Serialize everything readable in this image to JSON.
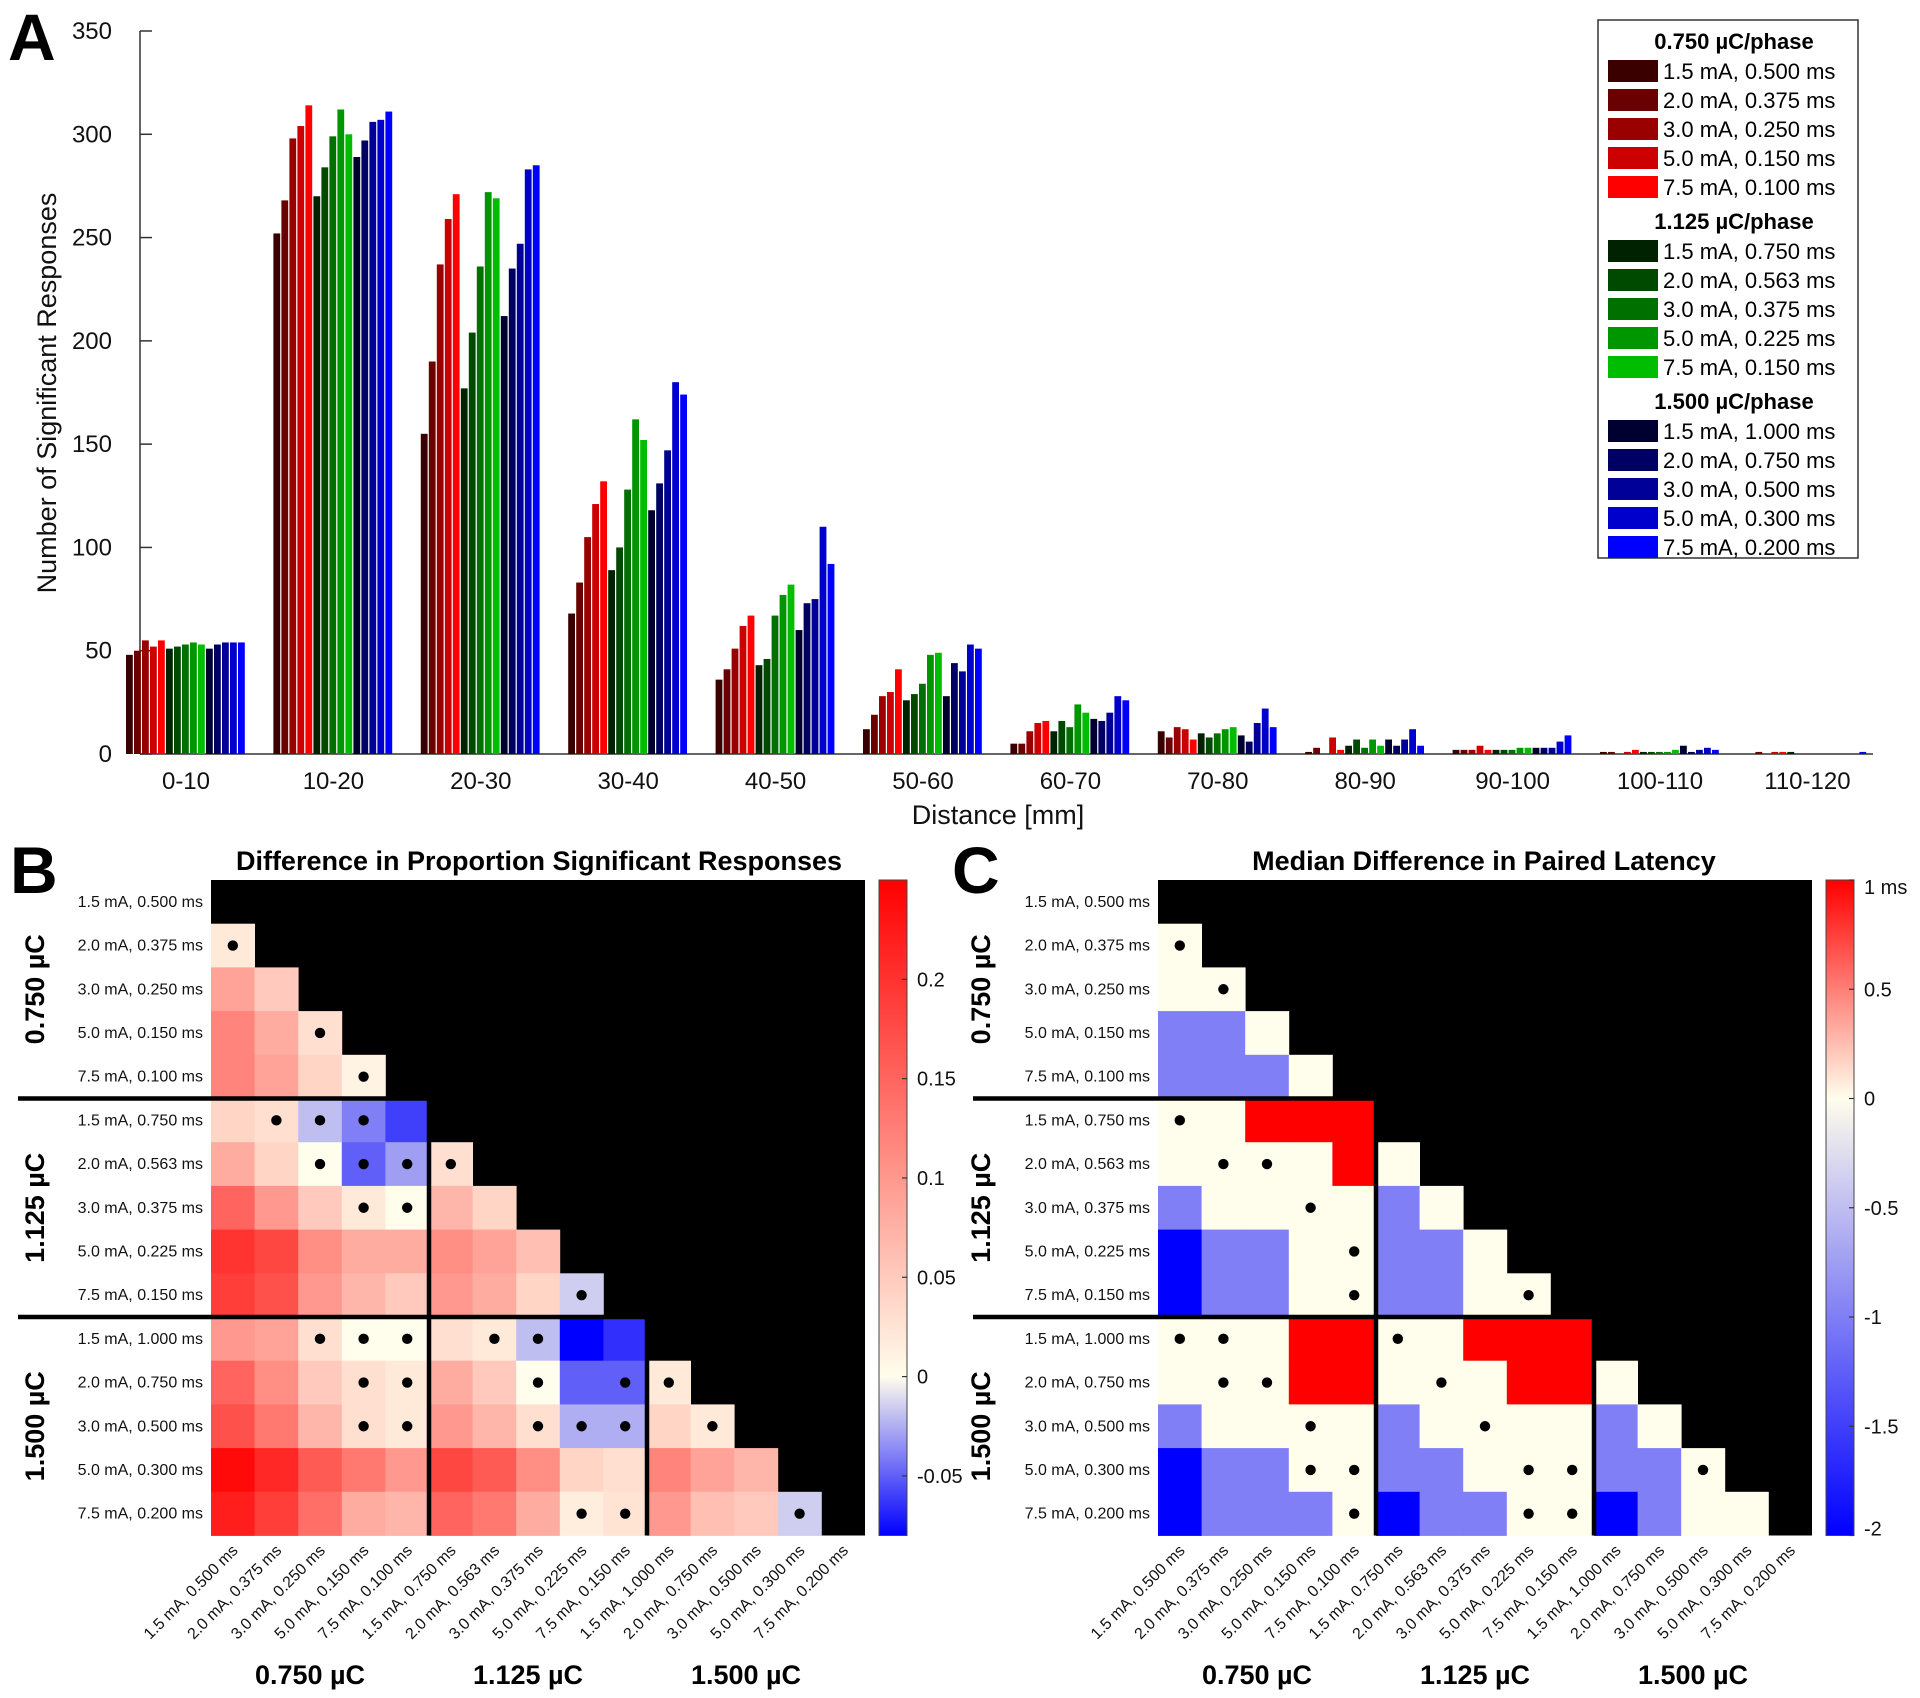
{
  "panel_labels": {
    "a": "A",
    "b": "B",
    "c": "C"
  },
  "chart_data": [
    {
      "type": "bar",
      "title": "",
      "xlabel": "Distance [mm]",
      "ylabel": "Number of Significant Responses",
      "ylim": [
        0,
        350
      ],
      "yticks": [
        "0",
        "50",
        "100",
        "150",
        "200",
        "250",
        "300",
        "350"
      ],
      "categories": [
        "0-10",
        "10-20",
        "20-30",
        "30-40",
        "40-50",
        "50-60",
        "60-70",
        "70-80",
        "80-90",
        "90-100",
        "100-110",
        "110-120"
      ],
      "legend": {
        "placement": "top-right",
        "groups": [
          {
            "title": "0.750 µC/phase",
            "series_index": [
              0,
              1,
              2,
              3,
              4
            ]
          },
          {
            "title": "1.125 µC/phase",
            "series_index": [
              5,
              6,
              7,
              8,
              9
            ]
          },
          {
            "title": "1.500 µC/phase",
            "series_index": [
              10,
              11,
              12,
              13,
              14
            ]
          }
        ]
      },
      "series": [
        {
          "name": "1.5 mA, 0.500 ms",
          "color": "#3a0000",
          "values": [
            48,
            252,
            155,
            68,
            36,
            12,
            5,
            11,
            1,
            2,
            1,
            0
          ]
        },
        {
          "name": "2.0 mA, 0.375 ms",
          "color": "#6b0000",
          "values": [
            50,
            268,
            190,
            83,
            41,
            19,
            5,
            8,
            3,
            2,
            1,
            1
          ]
        },
        {
          "name": "3.0 mA, 0.250 ms",
          "color": "#9b0000",
          "values": [
            55,
            298,
            237,
            105,
            51,
            28,
            11,
            13,
            0,
            2,
            0,
            0
          ]
        },
        {
          "name": "5.0 mA, 0.150 ms",
          "color": "#cc0000",
          "values": [
            52,
            304,
            259,
            121,
            62,
            30,
            15,
            12,
            8,
            4,
            1,
            1
          ]
        },
        {
          "name": "7.5 mA, 0.100 ms",
          "color": "#ff0000",
          "values": [
            55,
            314,
            271,
            132,
            67,
            41,
            16,
            7,
            2,
            2,
            2,
            1
          ]
        },
        {
          "name": "1.5 mA, 0.750 ms",
          "color": "#002200",
          "values": [
            51,
            270,
            177,
            89,
            43,
            26,
            11,
            10,
            4,
            2,
            1,
            1
          ]
        },
        {
          "name": "2.0 mA, 0.563 ms",
          "color": "#004a00",
          "values": [
            52,
            284,
            204,
            100,
            46,
            29,
            16,
            8,
            7,
            2,
            1,
            0
          ]
        },
        {
          "name": "3.0 mA, 0.375 ms",
          "color": "#007000",
          "values": [
            53,
            299,
            236,
            128,
            67,
            34,
            13,
            10,
            3,
            2,
            1,
            0
          ]
        },
        {
          "name": "5.0 mA, 0.225 ms",
          "color": "#009600",
          "values": [
            54,
            312,
            272,
            162,
            77,
            48,
            24,
            12,
            7,
            3,
            1,
            0
          ]
        },
        {
          "name": "7.5 mA, 0.150 ms",
          "color": "#00bd00",
          "values": [
            53,
            300,
            269,
            152,
            82,
            49,
            20,
            13,
            4,
            3,
            2,
            0
          ]
        },
        {
          "name": "1.5 mA, 1.000 ms",
          "color": "#000030",
          "values": [
            51,
            289,
            212,
            118,
            60,
            28,
            17,
            9,
            7,
            3,
            4,
            0
          ]
        },
        {
          "name": "2.0 mA, 0.750 ms",
          "color": "#000064",
          "values": [
            53,
            297,
            235,
            131,
            73,
            44,
            16,
            6,
            4,
            3,
            1,
            0
          ]
        },
        {
          "name": "3.0 mA, 0.500 ms",
          "color": "#000098",
          "values": [
            54,
            306,
            247,
            147,
            75,
            40,
            20,
            15,
            7,
            3,
            2,
            0
          ]
        },
        {
          "name": "5.0 mA, 0.300 ms",
          "color": "#0000cc",
          "values": [
            54,
            307,
            283,
            180,
            110,
            53,
            28,
            22,
            12,
            6,
            3,
            0
          ]
        },
        {
          "name": "7.5 mA, 0.200 ms",
          "color": "#0000ff",
          "values": [
            54,
            311,
            285,
            174,
            92,
            51,
            26,
            13,
            4,
            9,
            2,
            1
          ]
        }
      ]
    },
    {
      "type": "heatmap",
      "title": "Difference in Proportion Significant Responses",
      "labels": [
        "1.5 mA, 0.500 ms",
        "2.0 mA, 0.375 ms",
        "3.0 mA, 0.250 ms",
        "5.0 mA, 0.150 ms",
        "7.5 mA, 0.100 ms",
        "1.5 mA, 0.750 ms",
        "2.0 mA, 0.563 ms",
        "3.0 mA, 0.375 ms",
        "5.0 mA, 0.225 ms",
        "7.5 mA, 0.150 ms",
        "1.5 mA, 1.000 ms",
        "2.0 mA, 0.750 ms",
        "3.0 mA, 0.500 ms",
        "5.0 mA, 0.300 ms",
        "7.5 mA, 0.200 ms"
      ],
      "group_labels": [
        "0.750 µC",
        "1.125 µC",
        "1.500 µC"
      ],
      "values": [
        [],
        [
          0.02
        ],
        [
          0.09,
          0.05
        ],
        [
          0.12,
          0.08,
          0.03
        ],
        [
          0.12,
          0.09,
          0.04,
          0.01
        ],
        [
          0.04,
          0.03,
          -0.02,
          -0.04,
          -0.06
        ],
        [
          0.08,
          0.04,
          0.0,
          -0.05,
          -0.03,
          0.03
        ],
        [
          0.15,
          0.1,
          0.05,
          0.02,
          0.0,
          0.07,
          0.04
        ],
        [
          0.2,
          0.18,
          0.11,
          0.08,
          0.08,
          0.11,
          0.09,
          0.06
        ],
        [
          0.19,
          0.17,
          0.1,
          0.07,
          0.05,
          0.1,
          0.08,
          0.04,
          -0.015
        ],
        [
          0.1,
          0.09,
          0.03,
          0.0,
          0.0,
          0.03,
          0.02,
          -0.02,
          -0.08,
          -0.065
        ],
        [
          0.15,
          0.11,
          0.05,
          0.03,
          0.02,
          0.08,
          0.05,
          0.0,
          -0.05,
          -0.05,
          0.02
        ],
        [
          0.17,
          0.13,
          0.07,
          0.03,
          0.02,
          0.1,
          0.07,
          0.03,
          -0.025,
          -0.025,
          0.04,
          0.02
        ],
        [
          0.24,
          0.21,
          0.16,
          0.13,
          0.1,
          0.18,
          0.16,
          0.11,
          0.04,
          0.03,
          0.12,
          0.09,
          0.07
        ],
        [
          0.22,
          0.19,
          0.14,
          0.08,
          0.07,
          0.15,
          0.13,
          0.08,
          0.015,
          0.025,
          0.1,
          0.06,
          0.05,
          -0.015
        ]
      ],
      "significant": [
        [],
        [
          0
        ],
        [],
        [
          2
        ],
        [
          3
        ],
        [
          1,
          2,
          3
        ],
        [
          2,
          3,
          4,
          5
        ],
        [
          3,
          4
        ],
        [],
        [
          8
        ],
        [
          2,
          3,
          4,
          6,
          7
        ],
        [
          3,
          4,
          7,
          9,
          10
        ],
        [
          3,
          4,
          7,
          8,
          9,
          11
        ],
        [],
        [
          8,
          9,
          13
        ]
      ],
      "colorbar": {
        "range": [
          -0.08,
          0.25
        ],
        "ticks": [
          -0.05,
          0,
          0.05,
          0.1,
          0.15,
          0.2
        ],
        "tick_labels": [
          "-0.05",
          "0",
          "0.05",
          "0.1",
          "0.15",
          "0.2"
        ]
      }
    },
    {
      "type": "heatmap",
      "title": "Median Difference in Paired Latency",
      "labels": [
        "1.5 mA, 0.500 ms",
        "2.0 mA, 0.375 ms",
        "3.0 mA, 0.250 ms",
        "5.0 mA, 0.150 ms",
        "7.5 mA, 0.100 ms",
        "1.5 mA, 0.750 ms",
        "2.0 mA, 0.563 ms",
        "3.0 mA, 0.375 ms",
        "5.0 mA, 0.225 ms",
        "7.5 mA, 0.150 ms",
        "1.5 mA, 1.000 ms",
        "2.0 mA, 0.750 ms",
        "3.0 mA, 0.500 ms",
        "5.0 mA, 0.300 ms",
        "7.5 mA, 0.200 ms"
      ],
      "group_labels": [
        "0.750 µC",
        "1.125 µC",
        "1.500 µC"
      ],
      "values": [
        [],
        [
          0
        ],
        [
          0,
          0
        ],
        [
          -1,
          -1,
          0
        ],
        [
          -1,
          -1,
          -1,
          0
        ],
        [
          0,
          0,
          1,
          1,
          1
        ],
        [
          0,
          0,
          0,
          0,
          1,
          0
        ],
        [
          -1,
          0,
          0,
          0,
          0,
          -1,
          0
        ],
        [
          -2,
          -1,
          -1,
          0,
          0,
          -1,
          -1,
          0
        ],
        [
          -2,
          -1,
          -1,
          0,
          0,
          -1,
          -1,
          0,
          0
        ],
        [
          0,
          0,
          0,
          1,
          1,
          0,
          0,
          1,
          1,
          1
        ],
        [
          0,
          0,
          0,
          1,
          1,
          0,
          0,
          0,
          1,
          1,
          0
        ],
        [
          -1,
          0,
          0,
          0,
          0,
          -1,
          0,
          0,
          0,
          0,
          -1,
          0
        ],
        [
          -2,
          -1,
          -1,
          0,
          0,
          -1,
          -1,
          0,
          0,
          0,
          -1,
          -1,
          0
        ],
        [
          -2,
          -1,
          -1,
          -1,
          0,
          -2,
          -1,
          -1,
          0,
          0,
          -2,
          -1,
          0,
          0
        ]
      ],
      "significant": [
        [],
        [
          0
        ],
        [
          1
        ],
        [],
        [],
        [
          0
        ],
        [
          1,
          2
        ],
        [
          3
        ],
        [
          4
        ],
        [
          4,
          8
        ],
        [
          0,
          1,
          5
        ],
        [
          1,
          2,
          6
        ],
        [
          3,
          7
        ],
        [
          3,
          4,
          8,
          9,
          12
        ],
        [
          4,
          8,
          9
        ]
      ],
      "colorbar": {
        "range": [
          -2,
          1
        ],
        "ticks": [
          -2,
          -1.5,
          -1,
          -0.5,
          0,
          0.5,
          1
        ],
        "tick_labels": [
          "-2",
          "-1.5",
          "-1",
          "-0.5",
          "0",
          "0.5",
          "1 ms"
        ]
      }
    }
  ]
}
